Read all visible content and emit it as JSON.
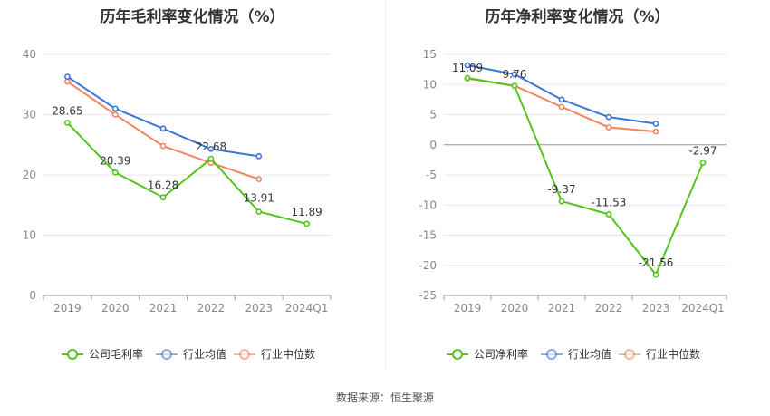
{
  "source_label": "数据来源：",
  "source_name": "恒生聚源",
  "chart_data": [
    {
      "type": "line",
      "title": "历年毛利率变化情况（%）",
      "categories": [
        "2019",
        "2020",
        "2021",
        "2022",
        "2023",
        "2024Q1"
      ],
      "ylim": [
        0,
        40
      ],
      "yticks": [
        0,
        10,
        20,
        30,
        40
      ],
      "grid": true,
      "legend": "bottom",
      "series": [
        {
          "name": "公司毛利率",
          "color": "#52c41a",
          "values": [
            28.65,
            20.39,
            16.28,
            22.68,
            13.91,
            11.89
          ],
          "labeled": true
        },
        {
          "name": "行业均值",
          "color": "#3a76d8",
          "values": [
            36.3,
            31.0,
            27.7,
            24.3,
            23.1,
            null
          ],
          "labeled": false
        },
        {
          "name": "行业中位数",
          "color": "#f4845f",
          "values": [
            35.5,
            30.0,
            24.8,
            22.0,
            19.3,
            null
          ],
          "labeled": false
        }
      ],
      "data_labels": [
        "28.65",
        "20.39",
        "16.28",
        "22.68",
        "13.91",
        "11.89"
      ]
    },
    {
      "type": "line",
      "title": "历年净利率变化情况（%）",
      "categories": [
        "2019",
        "2020",
        "2021",
        "2022",
        "2023",
        "2024Q1"
      ],
      "ylim": [
        -25,
        15
      ],
      "yticks": [
        -25,
        -20,
        -15,
        -10,
        -5,
        0,
        5,
        10,
        15
      ],
      "grid": true,
      "legend": "bottom",
      "series": [
        {
          "name": "公司净利率",
          "color": "#52c41a",
          "values": [
            11.09,
            9.76,
            -9.37,
            -11.53,
            -21.56,
            -2.97
          ],
          "labeled": true
        },
        {
          "name": "行业均值",
          "color": "#3a76d8",
          "values": [
            13.2,
            11.7,
            7.5,
            4.6,
            3.5,
            null
          ],
          "labeled": false
        },
        {
          "name": "行业中位数",
          "color": "#f4845f",
          "values": [
            11.0,
            9.8,
            6.3,
            2.9,
            2.2,
            null
          ],
          "labeled": false
        }
      ],
      "data_labels": [
        "11.09",
        "9.76",
        "-9.37",
        "-11.53",
        "-21.56",
        "-2.97"
      ]
    }
  ]
}
